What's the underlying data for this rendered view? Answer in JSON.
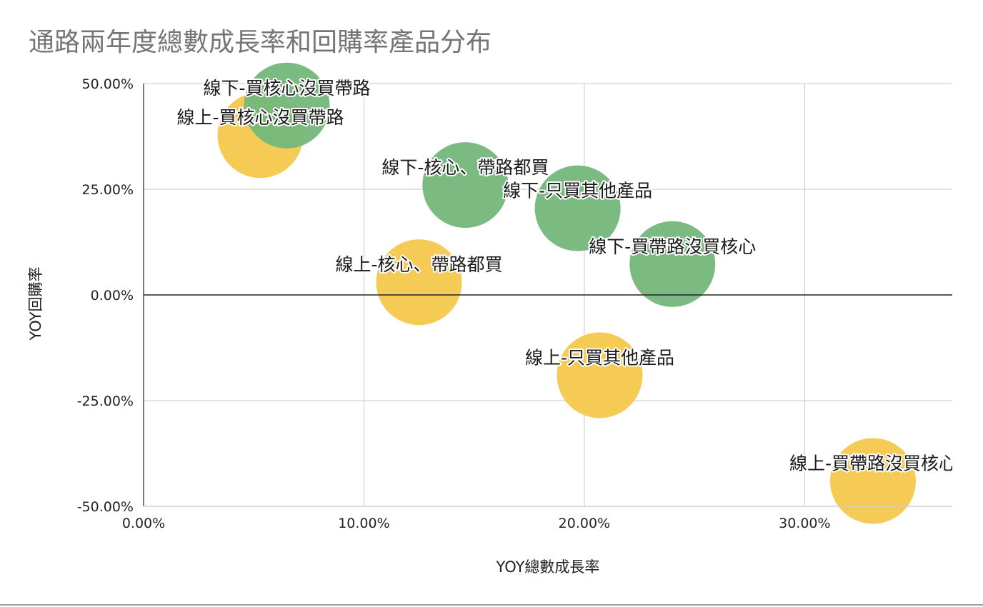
{
  "title": "通路兩年度總數成長率和回購率產品分布",
  "chart_data": {
    "type": "bubble",
    "title": "通路兩年度總數成長率和回購率產品分布",
    "xlabel": "YOY總數成長率",
    "ylabel": "YOY回購率",
    "xlim": [
      0,
      36.7
    ],
    "ylim": [
      -50,
      50
    ],
    "x_ticks": [
      "0.00%",
      "10.00%",
      "20.00%",
      "30.00%"
    ],
    "y_ticks": [
      "50.00%",
      "25.00%",
      "0.00%",
      "-25.00%",
      "-50.00%"
    ],
    "grid": true,
    "legend": "none",
    "series": [
      {
        "color": "#f6c84c",
        "points": [
          {
            "label": "線上-買核心沒買帶路",
            "x": 5.3,
            "y": 37.8
          },
          {
            "label": "線上-核心、帶路都買",
            "x": 12.5,
            "y": 3.0
          },
          {
            "label": "線上-只買其他產品",
            "x": 20.7,
            "y": -19.0
          },
          {
            "label": "線上-買帶路沒買核心",
            "x": 33.1,
            "y": -44.0
          }
        ]
      },
      {
        "color": "#74b77b",
        "points": [
          {
            "label": "線下-買核心沒買帶路",
            "x": 6.5,
            "y": 44.8
          },
          {
            "label": "線下-核心、帶路都買",
            "x": 14.6,
            "y": 26.0
          },
          {
            "label": "線下-只買其他產品",
            "x": 19.7,
            "y": 20.5
          },
          {
            "label": "線下-買帶路沒買核心",
            "x": 24.0,
            "y": 7.3
          }
        ]
      }
    ]
  }
}
